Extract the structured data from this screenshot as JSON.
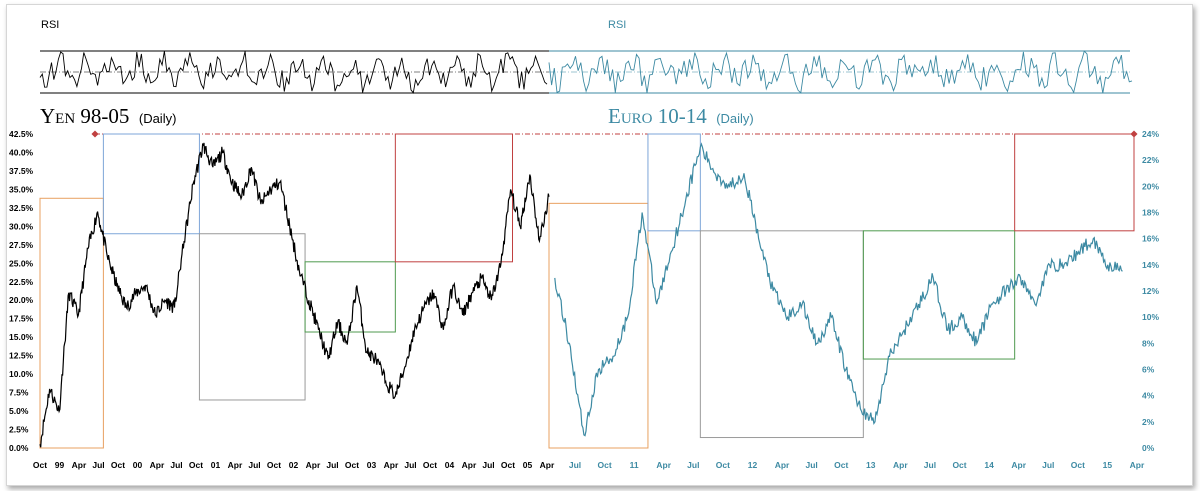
{
  "chart_data": [
    {
      "type": "line",
      "title": "Yen 98-05",
      "subtitle": "(Daily)",
      "rsi_label": "RSI",
      "color": "#000000",
      "ylim": [
        0,
        42.5
      ],
      "yticks": [
        "0.0%",
        "2.5%",
        "5.0%",
        "7.5%",
        "10.0%",
        "12.5%",
        "15.0%",
        "17.5%",
        "20.0%",
        "22.5%",
        "25.0%",
        "27.5%",
        "30.0%",
        "32.5%",
        "35.0%",
        "37.5%",
        "40.0%",
        "42.5%"
      ],
      "xticks": [
        "Oct",
        "99",
        "Apr",
        "Jul",
        "Oct",
        "00",
        "Apr",
        "Jul",
        "Oct",
        "01",
        "Apr",
        "Jul",
        "Oct",
        "02",
        "Apr",
        "Jul",
        "Oct",
        "03",
        "Apr",
        "Jul",
        "Oct",
        "04",
        "Apr",
        "Jul",
        "Oct",
        "05",
        "Apr"
      ],
      "x": [
        0,
        0.5,
        1,
        1.5,
        2,
        2.5,
        3,
        3.5,
        4,
        4.5,
        5,
        5.5,
        6,
        6.5,
        7,
        7.5,
        8,
        8.5,
        9,
        9.5,
        10,
        10.5,
        11,
        11.5,
        12,
        12.5,
        13,
        13.5,
        14,
        14.5,
        15,
        15.5,
        16,
        16.5,
        17,
        17.5,
        18,
        18.5,
        19,
        19.5,
        20,
        20.5,
        21,
        21.5,
        22,
        22.5,
        23,
        23.5,
        24,
        24.5,
        25,
        25.5,
        26,
        26.5
      ],
      "values": [
        0.5,
        8,
        5,
        21,
        18,
        27,
        32,
        26,
        22,
        19,
        21,
        22,
        18,
        20,
        19,
        28,
        36,
        41,
        38,
        40,
        36,
        34,
        38,
        33,
        35,
        36,
        30,
        24,
        20,
        16,
        12,
        17,
        14,
        22,
        13,
        12,
        9,
        7,
        11,
        16,
        19,
        21,
        16,
        22,
        18,
        21,
        23,
        20,
        25,
        35,
        30,
        37,
        28,
        34
      ],
      "boxes": [
        {
          "name": "orange",
          "color": "#e8a060",
          "x0": 0,
          "x1": 3.3,
          "y0": 0,
          "y1": 33.8
        },
        {
          "name": "blue",
          "color": "#7ea6d8",
          "x0": 3.3,
          "x1": 8.3,
          "y0": 29,
          "y1": 42.5
        },
        {
          "name": "gray",
          "color": "#9a9a9a",
          "x0": 8.3,
          "x1": 13.8,
          "y0": 6.5,
          "y1": 29
        },
        {
          "name": "green",
          "color": "#4f9a4f",
          "x0": 13.8,
          "x1": 18.5,
          "y0": 15.7,
          "y1": 25.2
        },
        {
          "name": "red",
          "color": "#c04040",
          "x0": 18.5,
          "x1": 24.6,
          "y0": 25.2,
          "y1": 42.5
        }
      ]
    },
    {
      "type": "line",
      "title": "Euro 10-14",
      "subtitle": "(Daily)",
      "rsi_label": "RSI",
      "color": "#3d8aa3",
      "ylim": [
        0,
        24
      ],
      "yticks": [
        "0%",
        "2%",
        "4%",
        "6%",
        "8%",
        "10%",
        "12%",
        "14%",
        "16%",
        "18%",
        "20%",
        "22%",
        "24%"
      ],
      "xticks": [
        "Jul",
        "Oct",
        "11",
        "Apr",
        "Jul",
        "Oct",
        "12",
        "Apr",
        "Jul",
        "Oct",
        "13",
        "Apr",
        "Jul",
        "Oct",
        "14",
        "Apr",
        "Jul",
        "Oct",
        "15",
        "Apr"
      ],
      "x": [
        0,
        0.5,
        1,
        1.5,
        2,
        2.5,
        3,
        3.5,
        4,
        4.5,
        5,
        5.5,
        6,
        6.5,
        7,
        7.5,
        8,
        8.5,
        9,
        9.5,
        10,
        10.5,
        11,
        11.5,
        12,
        12.5,
        13,
        13.5,
        14,
        14.5,
        15,
        15.5,
        16,
        16.5,
        17,
        17.5,
        18,
        18.5,
        19,
        19.5
      ],
      "values": [
        13,
        8,
        1,
        6,
        7,
        10,
        18,
        11,
        15,
        19,
        23,
        21,
        20,
        21,
        16,
        12,
        10,
        11,
        8,
        10,
        6,
        3,
        2,
        7,
        9,
        11,
        13,
        9,
        10,
        8,
        11,
        12,
        13,
        11,
        14,
        14,
        15,
        16,
        14,
        13.5
      ],
      "boxes": [
        {
          "name": "orange",
          "color": "#e8a060",
          "x0": -0.2,
          "x1": 3.2,
          "y0": 0,
          "y1": 18.7
        },
        {
          "name": "blue",
          "color": "#7ea6d8",
          "x0": 3.2,
          "x1": 5.0,
          "y0": 16.6,
          "y1": 24
        },
        {
          "name": "gray",
          "color": "#9a9a9a",
          "x0": 5.0,
          "x1": 10.6,
          "y0": 0.8,
          "y1": 16.6
        },
        {
          "name": "green",
          "color": "#4f9a4f",
          "x0": 10.6,
          "x1": 15.8,
          "y0": 6.8,
          "y1": 16.6
        },
        {
          "name": "red",
          "color": "#c04040",
          "x0": 15.8,
          "x1": 19.9,
          "y0": 16.6,
          "y1": 24
        }
      ]
    }
  ]
}
